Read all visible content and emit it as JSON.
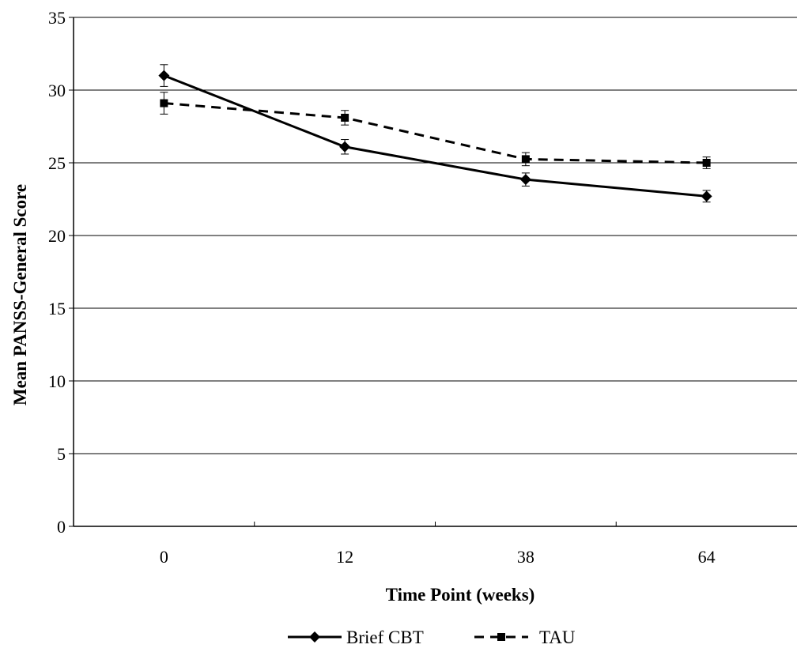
{
  "chart_data": {
    "type": "line",
    "title": "",
    "xlabel": "Time Point (weeks)",
    "ylabel": "Mean PANSS-General Score",
    "categories": [
      "0",
      "12",
      "38",
      "64"
    ],
    "ylim": [
      0,
      35
    ],
    "yticks": [
      0,
      5,
      10,
      15,
      20,
      25,
      30,
      35
    ],
    "grid": "horizontal",
    "legend_position": "bottom",
    "series": [
      {
        "name": "Brief CBT",
        "values": [
          31.0,
          26.1,
          23.85,
          22.7
        ],
        "error": [
          0.75,
          0.5,
          0.45,
          0.4
        ],
        "marker": "diamond",
        "line_style": "solid",
        "color": "#000000"
      },
      {
        "name": "TAU",
        "values": [
          29.1,
          28.1,
          25.25,
          25.0
        ],
        "error": [
          0.75,
          0.5,
          0.45,
          0.4
        ],
        "marker": "square",
        "line_style": "dashed",
        "color": "#000000"
      }
    ]
  }
}
